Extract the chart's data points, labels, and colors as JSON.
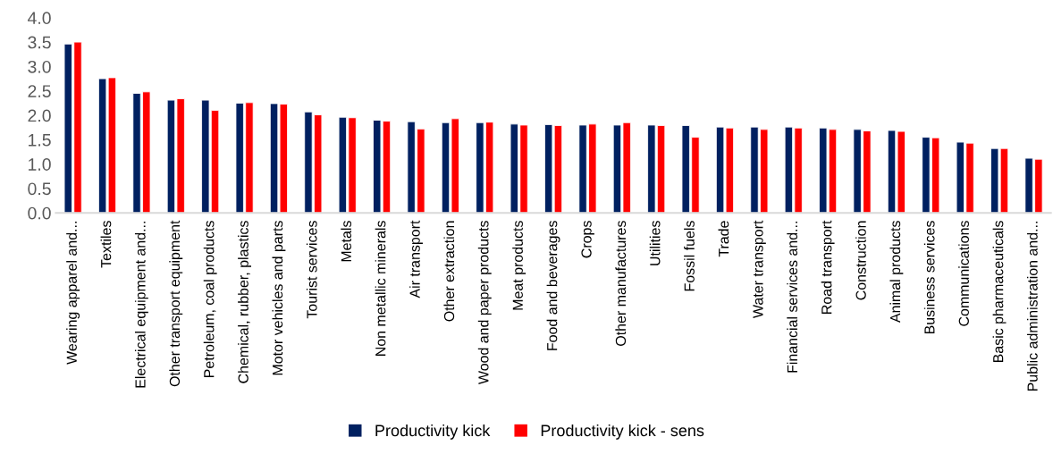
{
  "chart_data": {
    "type": "bar",
    "categories": [
      "Wearing apparel and...",
      "Textiles",
      "Electrical equipment and...",
      "Other transport equipment",
      "Petroleum, coal products",
      "Chemical, rubber, plastics",
      "Motor vehicles and parts",
      "Tourist services",
      "Metals",
      "Non metallic minerals",
      "Air transport",
      "Other extraction",
      "Wood and paper products",
      "Meat products",
      "Food and beverages",
      "Crops",
      "Other manufactures",
      "Utilities",
      "Fossil fuels",
      "Trade",
      "Water transport",
      "Financial services and...",
      "Road transport",
      "Construction",
      "Animal products",
      "Business services",
      "Communications",
      "Basic pharmaceuticals",
      "Public administration and..."
    ],
    "series": [
      {
        "name": "Productivity kick",
        "color": "#002060",
        "values": [
          3.46,
          2.75,
          2.45,
          2.31,
          2.31,
          2.25,
          2.24,
          2.07,
          1.96,
          1.9,
          1.87,
          1.85,
          1.85,
          1.82,
          1.81,
          1.8,
          1.8,
          1.8,
          1.79,
          1.76,
          1.76,
          1.76,
          1.74,
          1.71,
          1.69,
          1.55,
          1.45,
          1.32,
          1.12
        ]
      },
      {
        "name": "Productivity kick - sens",
        "color": "#ff0000",
        "values": [
          3.5,
          2.77,
          2.48,
          2.34,
          2.1,
          2.26,
          2.23,
          2.01,
          1.95,
          1.88,
          1.72,
          1.93,
          1.86,
          1.8,
          1.79,
          1.82,
          1.85,
          1.79,
          1.55,
          1.74,
          1.71,
          1.74,
          1.71,
          1.68,
          1.67,
          1.54,
          1.43,
          1.32,
          1.1
        ]
      }
    ],
    "ylim": [
      0,
      4
    ],
    "yticks": [
      {
        "value": 0,
        "label": "0.0"
      },
      {
        "value": 0.5,
        "label": "0.5"
      },
      {
        "value": 1,
        "label": "1.0"
      },
      {
        "value": 1.5,
        "label": "1.5"
      },
      {
        "value": 2,
        "label": "2.0"
      },
      {
        "value": 2.5,
        "label": "2.5"
      },
      {
        "value": 3,
        "label": "3.0"
      },
      {
        "value": 3.5,
        "label": "3.5"
      },
      {
        "value": 4,
        "label": "4.0"
      }
    ],
    "grid": false,
    "legend": "bottom"
  }
}
